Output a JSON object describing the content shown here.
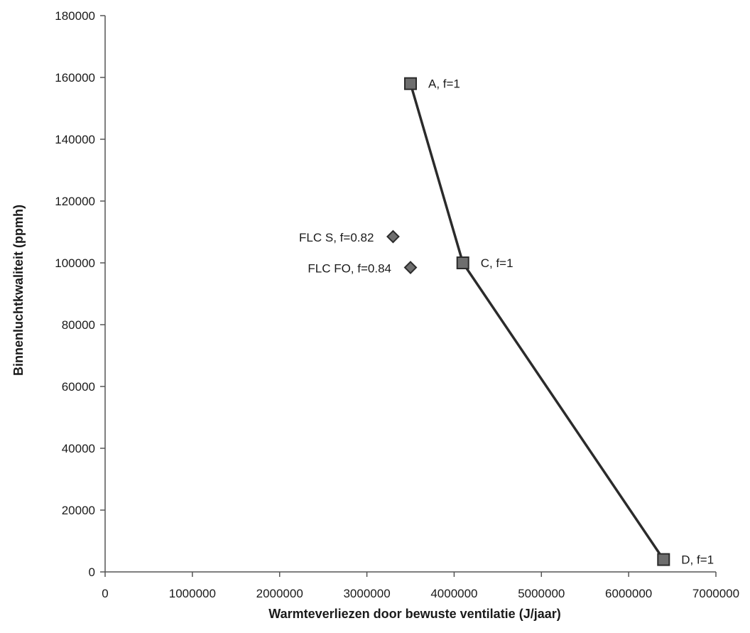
{
  "chart_data": {
    "type": "scatter",
    "title": "",
    "xlabel": "Warmteverliezen door bewuste ventilatie (J/jaar)",
    "ylabel": "Binnenluchtkwaliteit (ppmh)",
    "xlim": [
      0,
      7000000
    ],
    "ylim": [
      0,
      180000
    ],
    "x_ticks": [
      0,
      1000000,
      2000000,
      3000000,
      4000000,
      5000000,
      6000000,
      7000000
    ],
    "x_tick_labels": [
      "0",
      "1000000",
      "2000000",
      "3000000",
      "4000000",
      "5000000",
      "6000000",
      "7000000"
    ],
    "y_ticks": [
      0,
      20000,
      40000,
      60000,
      80000,
      100000,
      120000,
      140000,
      160000,
      180000
    ],
    "y_tick_labels": [
      "0",
      "20000",
      "40000",
      "60000",
      "80000",
      "100000",
      "120000",
      "140000",
      "160000",
      "180000"
    ],
    "grid": false,
    "legend": "none",
    "colors": {
      "line": "#2b2b2b",
      "marker": "#6e6e6e",
      "marker_edge": "#2b2b2b"
    },
    "series": [
      {
        "marker": "square",
        "connected": true,
        "points": [
          {
            "x": 3500000,
            "y": 158000,
            "label": "A, f=1"
          },
          {
            "x": 4100000,
            "y": 100000,
            "label": "C, f=1"
          },
          {
            "x": 6400000,
            "y": 4000,
            "label": "D, f=1"
          }
        ]
      },
      {
        "marker": "diamond",
        "connected": false,
        "points": [
          {
            "x": 3300000,
            "y": 108500,
            "label": "FLC S, f=0.82"
          },
          {
            "x": 3500000,
            "y": 98500,
            "label": "FLC FO, f=0.84"
          }
        ]
      }
    ]
  }
}
